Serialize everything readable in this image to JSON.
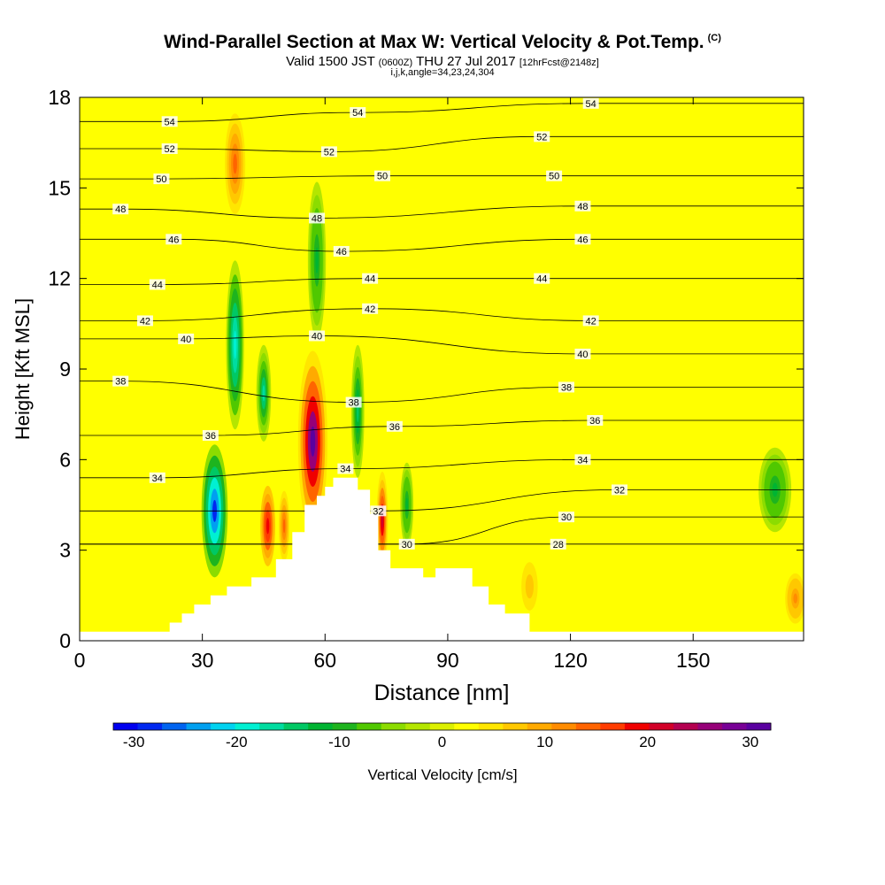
{
  "title": {
    "line1": "Wind-Parallel Section at Max W: Vertical Velocity & Pot.Temp.",
    "copyright": "(C)",
    "line2_valid": "Valid 1500 JST",
    "line2_utc": "(0600Z)",
    "line2_date": "THU 27 Jul 2017",
    "line2_fcst": "[12hrFcst@2148z]",
    "line3": "i,j,k,angle=34,23,24,304"
  },
  "chart_data": {
    "type": "heatmap",
    "xlabel": "Distance [nm]",
    "ylabel": "Height [Kft MSL]",
    "xlim": [
      0,
      177
    ],
    "ylim": [
      0,
      18
    ],
    "xticks": [
      0,
      30,
      60,
      90,
      120,
      150
    ],
    "yticks": [
      0,
      3,
      6,
      9,
      12,
      15,
      18
    ],
    "colorbar": {
      "label": "Vertical Velocity [cm/s]",
      "range": [
        -32,
        32
      ],
      "ticks": [
        -30,
        -20,
        -10,
        0,
        10,
        20,
        30
      ],
      "colors": [
        "#0000f0",
        "#0028f0",
        "#0064f0",
        "#00a0f0",
        "#00d2f0",
        "#00f0d2",
        "#00dca0",
        "#00c864",
        "#00b432",
        "#1eb41e",
        "#50c800",
        "#8cdc00",
        "#b4e600",
        "#dcf000",
        "#ffff00",
        "#ffe600",
        "#ffc800",
        "#ffaa00",
        "#ff8c00",
        "#ff6400",
        "#ff3c00",
        "#f00000",
        "#d20028",
        "#b40050",
        "#960078",
        "#780096",
        "#5a00a0"
      ]
    },
    "terrain": [
      [
        0,
        0.3
      ],
      [
        22,
        0.3
      ],
      [
        22,
        0.6
      ],
      [
        25,
        0.6
      ],
      [
        25,
        0.9
      ],
      [
        28,
        0.9
      ],
      [
        28,
        1.2
      ],
      [
        32,
        1.2
      ],
      [
        32,
        1.5
      ],
      [
        36,
        1.5
      ],
      [
        36,
        1.8
      ],
      [
        42,
        1.8
      ],
      [
        42,
        2.1
      ],
      [
        48,
        2.1
      ],
      [
        48,
        2.7
      ],
      [
        52,
        2.7
      ],
      [
        52,
        3.6
      ],
      [
        55,
        3.6
      ],
      [
        55,
        4.5
      ],
      [
        58,
        4.5
      ],
      [
        58,
        4.8
      ],
      [
        60,
        4.8
      ],
      [
        60,
        5.1
      ],
      [
        62,
        5.1
      ],
      [
        62,
        5.4
      ],
      [
        68,
        5.4
      ],
      [
        68,
        5.0
      ],
      [
        71,
        5.0
      ],
      [
        71,
        4.2
      ],
      [
        73,
        4.2
      ],
      [
        73,
        3.0
      ],
      [
        76,
        3.0
      ],
      [
        76,
        2.4
      ],
      [
        84,
        2.4
      ],
      [
        84,
        2.1
      ],
      [
        87,
        2.1
      ],
      [
        87,
        2.4
      ],
      [
        96,
        2.4
      ],
      [
        96,
        1.8
      ],
      [
        100,
        1.8
      ],
      [
        100,
        1.2
      ],
      [
        104,
        1.2
      ],
      [
        104,
        0.9
      ],
      [
        110,
        0.9
      ],
      [
        110,
        0.3
      ],
      [
        177,
        0.3
      ]
    ],
    "theta_labels": [
      {
        "x": 22,
        "y": 17.2,
        "text": "54"
      },
      {
        "x": 68,
        "y": 17.5,
        "text": "54"
      },
      {
        "x": 125,
        "y": 17.8,
        "text": "54"
      },
      {
        "x": 22,
        "y": 16.3,
        "text": "52"
      },
      {
        "x": 61,
        "y": 16.2,
        "text": "52"
      },
      {
        "x": 113,
        "y": 16.7,
        "text": "52"
      },
      {
        "x": 20,
        "y": 15.3,
        "text": "50"
      },
      {
        "x": 74,
        "y": 15.4,
        "text": "50"
      },
      {
        "x": 116,
        "y": 15.4,
        "text": "50"
      },
      {
        "x": 10,
        "y": 14.3,
        "text": "48"
      },
      {
        "x": 58,
        "y": 14.0,
        "text": "48"
      },
      {
        "x": 123,
        "y": 14.4,
        "text": "48"
      },
      {
        "x": 23,
        "y": 13.3,
        "text": "46"
      },
      {
        "x": 64,
        "y": 12.9,
        "text": "46"
      },
      {
        "x": 123,
        "y": 13.3,
        "text": "46"
      },
      {
        "x": 19,
        "y": 11.8,
        "text": "44"
      },
      {
        "x": 71,
        "y": 12.0,
        "text": "44"
      },
      {
        "x": 113,
        "y": 12.0,
        "text": "44"
      },
      {
        "x": 16,
        "y": 10.6,
        "text": "42"
      },
      {
        "x": 71,
        "y": 11.0,
        "text": "42"
      },
      {
        "x": 125,
        "y": 10.6,
        "text": "42"
      },
      {
        "x": 26,
        "y": 10.0,
        "text": "40"
      },
      {
        "x": 58,
        "y": 10.1,
        "text": "40"
      },
      {
        "x": 123,
        "y": 9.5,
        "text": "40"
      },
      {
        "x": 10,
        "y": 8.6,
        "text": "38"
      },
      {
        "x": 67,
        "y": 7.9,
        "text": "38"
      },
      {
        "x": 119,
        "y": 8.4,
        "text": "38"
      },
      {
        "x": 32,
        "y": 6.8,
        "text": "36"
      },
      {
        "x": 77,
        "y": 7.1,
        "text": "36"
      },
      {
        "x": 126,
        "y": 7.3,
        "text": "36"
      },
      {
        "x": 19,
        "y": 5.4,
        "text": "34"
      },
      {
        "x": 65,
        "y": 5.7,
        "text": "34"
      },
      {
        "x": 123,
        "y": 6.0,
        "text": "34"
      },
      {
        "x": 73,
        "y": 4.3,
        "text": "32"
      },
      {
        "x": 132,
        "y": 5.0,
        "text": "32"
      },
      {
        "x": 80,
        "y": 3.2,
        "text": "30"
      },
      {
        "x": 119,
        "y": 4.1,
        "text": "30"
      },
      {
        "x": 117,
        "y": 3.2,
        "text": "28"
      }
    ],
    "velocity_features": [
      {
        "x": 33,
        "y": 4.3,
        "rx": 3.2,
        "ry": 2.2,
        "value": -28
      },
      {
        "x": 38,
        "y": 9.8,
        "rx": 2.2,
        "ry": 2.8,
        "value": -20
      },
      {
        "x": 45,
        "y": 8.2,
        "rx": 1.8,
        "ry": 1.6,
        "value": -16
      },
      {
        "x": 57,
        "y": 6.6,
        "rx": 3.6,
        "ry": 3.0,
        "value": 30
      },
      {
        "x": 46,
        "y": 3.8,
        "rx": 2.2,
        "ry": 1.6,
        "value": 20
      },
      {
        "x": 38,
        "y": 15.8,
        "rx": 3.0,
        "ry": 2.0,
        "value": 14
      },
      {
        "x": 50,
        "y": 3.8,
        "rx": 1.6,
        "ry": 1.4,
        "value": 14
      },
      {
        "x": 74,
        "y": 4.0,
        "rx": 1.4,
        "ry": 1.6,
        "value": 22
      },
      {
        "x": 80,
        "y": 4.5,
        "rx": 1.6,
        "ry": 1.4,
        "value": -12
      },
      {
        "x": 68,
        "y": 7.6,
        "rx": 1.6,
        "ry": 2.2,
        "value": -14
      },
      {
        "x": 58,
        "y": 12.6,
        "rx": 2.2,
        "ry": 2.6,
        "value": -12
      },
      {
        "x": 170,
        "y": 5.0,
        "rx": 4.0,
        "ry": 1.4,
        "value": -12
      },
      {
        "x": 175,
        "y": 1.4,
        "rx": 3.0,
        "ry": 1.0,
        "value": 12
      },
      {
        "x": 110,
        "y": 1.8,
        "rx": 3.0,
        "ry": 1.2,
        "value": 8
      }
    ]
  }
}
